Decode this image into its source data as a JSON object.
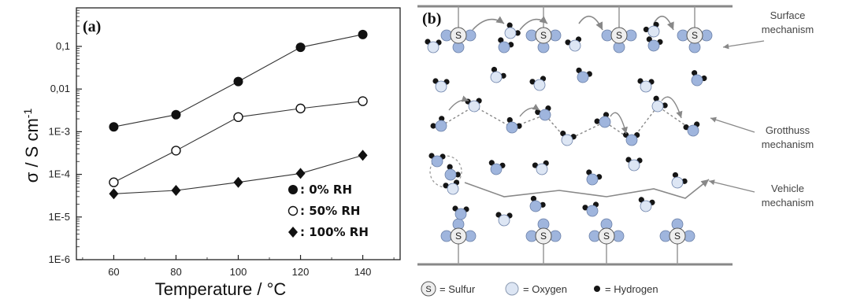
{
  "chart_data": {
    "type": "line",
    "panel_label": "(a)",
    "xlabel": "Temperature / °C",
    "ylabel": "σ / S cm-1",
    "x": [
      60,
      80,
      100,
      120,
      140
    ],
    "x_ticks": [
      "60",
      "80",
      "100",
      "120",
      "140"
    ],
    "xlim": [
      48,
      152
    ],
    "y_scale": "log",
    "ylim": [
      1e-06,
      0.8
    ],
    "y_ticks": [
      {
        "value": 1e-06,
        "label": "1E-6"
      },
      {
        "value": 1e-05,
        "label": "1E-5"
      },
      {
        "value": 0.0001,
        "label": "1E-4"
      },
      {
        "value": 0.001,
        "label": "1E-3"
      },
      {
        "value": 0.01,
        "label": "0,01"
      },
      {
        "value": 0.1,
        "label": "0,1"
      }
    ],
    "series": [
      {
        "name": ": 0% RH",
        "marker": "filled-circle",
        "values": [
          0.0013,
          0.0025,
          0.015,
          0.095,
          0.19
        ]
      },
      {
        "name": ": 50% RH",
        "marker": "open-circle",
        "values": [
          6.5e-05,
          0.00036,
          0.0022,
          0.0035,
          0.0052
        ]
      },
      {
        "name": ": 100% RH",
        "marker": "filled-diamond",
        "values": [
          3.5e-05,
          4.2e-05,
          6.5e-05,
          0.000105,
          0.00028
        ]
      }
    ],
    "legend_position": "bottom-right",
    "grid": false
  },
  "diagram": {
    "panel_label": "(b)",
    "annotations": {
      "surface_1": "Surface",
      "surface_2": "mechanism",
      "grotthuss_1": "Grotthuss",
      "grotthuss_2": "mechanism",
      "vehicle_1": "Vehicle",
      "vehicle_2": "mechanism"
    },
    "sulfur_symbol": "S",
    "key": {
      "sulfur": "= Sulfur",
      "oxygen": "= Oxygen",
      "hydrogen": "= Hydrogen"
    },
    "colors": {
      "oxygen_fill": "#dde6f4",
      "sulfonate_oxygen": "#9fb5dd",
      "hydrogen": "#151515",
      "arrow": "#888888"
    }
  }
}
